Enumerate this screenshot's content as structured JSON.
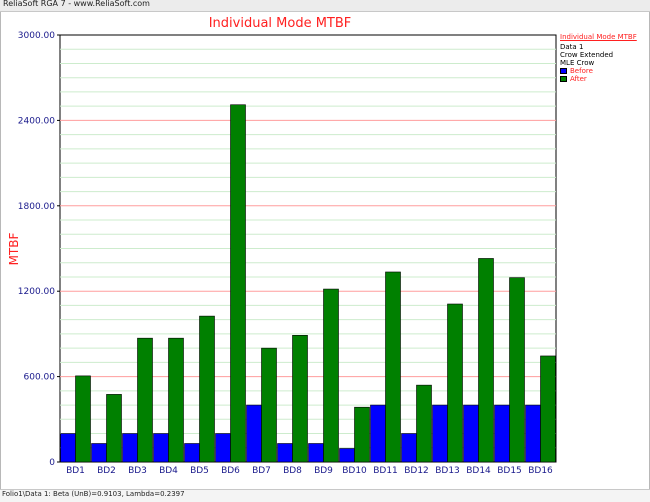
{
  "window": {
    "title": "ReliaSoft RGA 7 - www.ReliaSoft.com"
  },
  "status": {
    "text": "Folio1\\Data 1: Beta (UnB)=0.9103, Lambda=0.2397"
  },
  "legend": {
    "title": "Individual Mode MTBF",
    "lines": [
      "Data 1",
      "Crow Extended",
      "MLE Crow"
    ]
  },
  "colors": {
    "before": "#0000ff",
    "after": "#008000",
    "title": "#ff2020",
    "axis_text": "#1a1a8c"
  },
  "chart_data": {
    "type": "bar",
    "title": "Individual Mode MTBF",
    "xlabel": "",
    "ylabel": "MTBF",
    "ylim": [
      0,
      3000
    ],
    "yticks": [
      "0",
      "600.00",
      "1200.00",
      "1800.00",
      "2400.00",
      "3000.00"
    ],
    "grid": true,
    "legend_position": "right",
    "categories": [
      "BD1",
      "BD2",
      "BD3",
      "BD4",
      "BD5",
      "BD6",
      "BD7",
      "BD8",
      "BD9",
      "BD10",
      "BD11",
      "BD12",
      "BD13",
      "BD14",
      "BD15",
      "BD16"
    ],
    "series": [
      {
        "name": "Before",
        "color": "#0000ff",
        "values": [
          200,
          130,
          200,
          200,
          130,
          200,
          400,
          130,
          130,
          95,
          400,
          200,
          400,
          400,
          400,
          400
        ]
      },
      {
        "name": "After",
        "color": "#008000",
        "values": [
          605,
          475,
          870,
          870,
          1025,
          2510,
          800,
          890,
          1215,
          385,
          1335,
          540,
          1110,
          1430,
          1295,
          745
        ]
      }
    ]
  }
}
